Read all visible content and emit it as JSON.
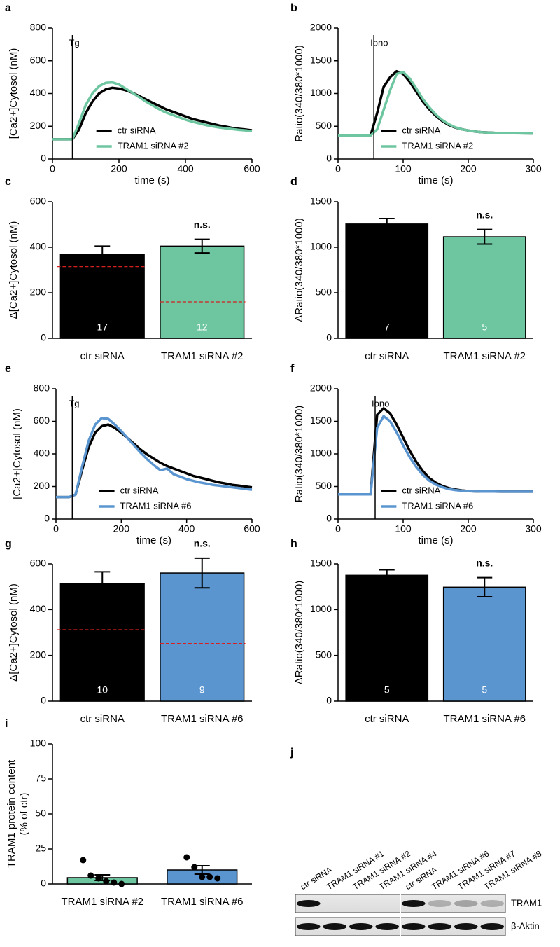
{
  "chart_data": [
    {
      "type": "line",
      "panel": "a",
      "ylabel": "[Ca2+]Cytosol (nM)",
      "xlabel": "time (s)",
      "xlim": [
        0,
        600
      ],
      "xticks": [
        0,
        200,
        400,
        600
      ],
      "ylim": [
        0,
        800
      ],
      "yticks": [
        0,
        200,
        400,
        600,
        800
      ],
      "annotation": {
        "text": "Tg",
        "x": 60
      },
      "legend": "lower center",
      "x": [
        0,
        20,
        40,
        60,
        80,
        100,
        120,
        140,
        160,
        180,
        200,
        220,
        240,
        260,
        280,
        300,
        320,
        340,
        360,
        380,
        400,
        420,
        440,
        460,
        480,
        500,
        520,
        540,
        560,
        580,
        600
      ],
      "series": [
        {
          "name": "ctr siRNA",
          "color": "#000000",
          "values": [
            120,
            120,
            120,
            120,
            180,
            280,
            350,
            400,
            425,
            435,
            430,
            420,
            405,
            385,
            365,
            345,
            325,
            305,
            290,
            275,
            260,
            245,
            235,
            225,
            215,
            205,
            198,
            190,
            185,
            180,
            175
          ]
        },
        {
          "name": "TRAM1 siRNA #2",
          "color": "#6dc6a0",
          "values": [
            120,
            120,
            120,
            120,
            220,
            330,
            400,
            445,
            465,
            468,
            455,
            430,
            405,
            378,
            352,
            328,
            305,
            285,
            270,
            255,
            240,
            228,
            218,
            208,
            200,
            193,
            188,
            183,
            178,
            175,
            170
          ]
        }
      ]
    },
    {
      "type": "line",
      "panel": "b",
      "ylabel": "Ratio(340/380*1000)",
      "xlabel": "time (s)",
      "xlim": [
        0,
        300
      ],
      "xticks": [
        0,
        100,
        200,
        300
      ],
      "ylim": [
        0,
        2000
      ],
      "yticks": [
        0,
        500,
        1000,
        1500,
        2000
      ],
      "annotation": {
        "text": "Iono",
        "x": 55
      },
      "legend": "lower center",
      "x": [
        0,
        10,
        20,
        30,
        40,
        50,
        60,
        70,
        80,
        90,
        100,
        110,
        120,
        130,
        140,
        150,
        160,
        170,
        180,
        190,
        200,
        210,
        220,
        230,
        240,
        250,
        260,
        270,
        280,
        290,
        300
      ],
      "series": [
        {
          "name": "ctr siRNA",
          "color": "#000000",
          "values": [
            360,
            360,
            360,
            360,
            360,
            360,
            700,
            1100,
            1250,
            1340,
            1300,
            1180,
            1030,
            880,
            760,
            660,
            580,
            520,
            480,
            455,
            435,
            420,
            410,
            405,
            400,
            398,
            395,
            393,
            392,
            391,
            390
          ]
        },
        {
          "name": "TRAM1 siRNA #2",
          "color": "#6dc6a0",
          "values": [
            360,
            360,
            360,
            360,
            360,
            360,
            450,
            750,
            1050,
            1300,
            1330,
            1230,
            1080,
            920,
            790,
            680,
            595,
            530,
            485,
            455,
            435,
            420,
            410,
            404,
            400,
            397,
            394,
            392,
            391,
            390,
            389
          ]
        }
      ]
    },
    {
      "type": "bar",
      "panel": "c",
      "ylabel": "Δ[Ca2+]Cytosol (nM)",
      "ylim": [
        0,
        600
      ],
      "yticks": [
        0,
        200,
        400,
        600
      ],
      "categories": [
        "ctr siRNA",
        "TRAM1 siRNA #2"
      ],
      "colors": [
        "#000000",
        "#6dc6a0"
      ],
      "values": [
        370,
        405
      ],
      "errors": [
        35,
        30
      ],
      "n": [
        17,
        12
      ],
      "reference_values": [
        315,
        160
      ],
      "significance": [
        null,
        "n.s."
      ]
    },
    {
      "type": "bar",
      "panel": "d",
      "ylabel": "ΔRatio(340/380*1000)",
      "ylim": [
        0,
        1500
      ],
      "yticks": [
        0,
        500,
        1000,
        1500
      ],
      "categories": [
        "ctr siRNA",
        "TRAM1 siRNA #2"
      ],
      "colors": [
        "#000000",
        "#6dc6a0"
      ],
      "values": [
        1255,
        1115
      ],
      "errors": [
        60,
        80
      ],
      "n": [
        7,
        5
      ],
      "significance": [
        null,
        "n.s."
      ]
    },
    {
      "type": "line",
      "panel": "e",
      "ylabel": "[Ca2+]Cytosol (nM)",
      "xlabel": "time (s)",
      "xlim": [
        0,
        600
      ],
      "xticks": [
        0,
        200,
        400,
        600
      ],
      "ylim": [
        0,
        800
      ],
      "yticks": [
        0,
        200,
        400,
        600,
        800
      ],
      "annotation": {
        "text": "Tg",
        "x": 50
      },
      "legend": "lower center",
      "x": [
        0,
        20,
        40,
        60,
        80,
        100,
        120,
        140,
        160,
        180,
        200,
        220,
        240,
        260,
        280,
        300,
        320,
        340,
        360,
        380,
        400,
        420,
        440,
        460,
        480,
        500,
        520,
        540,
        560,
        580,
        600
      ],
      "series": [
        {
          "name": "ctr siRNA",
          "color": "#000000",
          "values": [
            135,
            135,
            135,
            150,
            300,
            440,
            530,
            570,
            580,
            560,
            530,
            495,
            460,
            425,
            395,
            370,
            345,
            325,
            310,
            295,
            280,
            265,
            255,
            245,
            235,
            225,
            218,
            210,
            205,
            200,
            195
          ]
        },
        {
          "name": "TRAM1 siRNA #6",
          "color": "#5b95d0",
          "values": [
            135,
            135,
            135,
            150,
            320,
            480,
            580,
            620,
            615,
            580,
            540,
            495,
            450,
            405,
            365,
            330,
            300,
            310,
            275,
            260,
            245,
            235,
            225,
            218,
            210,
            205,
            200,
            195,
            190,
            185,
            180
          ]
        }
      ]
    },
    {
      "type": "line",
      "panel": "f",
      "ylabel": "Ratio(340/380*1000)",
      "xlabel": "time (s)",
      "xlim": [
        0,
        300
      ],
      "xticks": [
        0,
        100,
        200,
        300
      ],
      "ylim": [
        0,
        2000
      ],
      "yticks": [
        0,
        500,
        1000,
        1500,
        2000
      ],
      "annotation": {
        "text": "Iono",
        "x": 57
      },
      "legend": "lower center",
      "x": [
        0,
        10,
        20,
        30,
        40,
        50,
        60,
        70,
        80,
        90,
        100,
        110,
        120,
        130,
        140,
        150,
        160,
        170,
        180,
        190,
        200,
        210,
        220,
        230,
        240,
        250,
        260,
        270,
        280,
        290,
        300
      ],
      "series": [
        {
          "name": "ctr siRNA",
          "color": "#000000",
          "values": [
            380,
            380,
            380,
            380,
            380,
            380,
            1600,
            1700,
            1620,
            1450,
            1250,
            1050,
            880,
            740,
            630,
            560,
            510,
            475,
            455,
            440,
            430,
            425,
            423,
            422,
            421,
            420,
            420,
            420,
            420,
            420,
            420
          ]
        },
        {
          "name": "TRAM1 siRNA #6",
          "color": "#5b95d0",
          "values": [
            380,
            380,
            380,
            380,
            380,
            380,
            1400,
            1580,
            1500,
            1330,
            1130,
            950,
            800,
            680,
            590,
            530,
            490,
            460,
            445,
            435,
            428,
            425,
            423,
            422,
            421,
            420,
            420,
            420,
            420,
            420,
            420
          ]
        }
      ]
    },
    {
      "type": "bar",
      "panel": "g",
      "ylabel": "Δ[Ca2+]Cytosol (nM)",
      "ylim": [
        0,
        600
      ],
      "yticks": [
        0,
        200,
        400,
        600
      ],
      "categories": [
        "ctr siRNA",
        "TRAM1 siRNA #6"
      ],
      "colors": [
        "#000000",
        "#5b95d0"
      ],
      "values": [
        515,
        560
      ],
      "errors": [
        50,
        65
      ],
      "n": [
        10,
        9
      ],
      "reference_values": [
        312,
        252
      ],
      "significance": [
        null,
        "n.s."
      ]
    },
    {
      "type": "bar",
      "panel": "h",
      "ylabel": "ΔRatio(340/380*1000)",
      "ylim": [
        0,
        1500
      ],
      "yticks": [
        0,
        500,
        1000,
        1500
      ],
      "categories": [
        "ctr siRNA",
        "TRAM1 siRNA #6"
      ],
      "colors": [
        "#000000",
        "#5b95d0"
      ],
      "values": [
        1375,
        1245
      ],
      "errors": [
        60,
        105
      ],
      "n": [
        5,
        5
      ],
      "significance": [
        null,
        "n.s."
      ]
    },
    {
      "type": "bar",
      "panel": "i",
      "ylabel": [
        "TRAM1 protein content",
        "(% of ctr)"
      ],
      "ylim": [
        0,
        100
      ],
      "yticks": [
        0,
        25,
        50,
        75,
        100
      ],
      "categories": [
        "TRAM1 siRNA #2",
        "TRAM1 siRNA #6"
      ],
      "colors": [
        "#6dc6a0",
        "#5b95d0"
      ],
      "values": [
        4.5,
        10
      ],
      "errors": [
        2,
        3
      ],
      "points": [
        [
          17,
          6,
          4,
          2,
          1,
          0
        ],
        [
          19,
          12,
          5,
          5,
          4
        ]
      ]
    }
  ],
  "blot": {
    "panel": "j",
    "lanes": [
      "ctr siRNA",
      "TRAM1 siRNA #1",
      "TRAM1 siRNA #2",
      "TRAM1 siRNA #4",
      "ctr siRNA",
      "TRAM1 siRNA #6",
      "TRAM1 siRNA #7",
      "TRAM1 siRNA #8"
    ],
    "bands": [
      "TRAM1",
      "β-Aktin"
    ]
  }
}
